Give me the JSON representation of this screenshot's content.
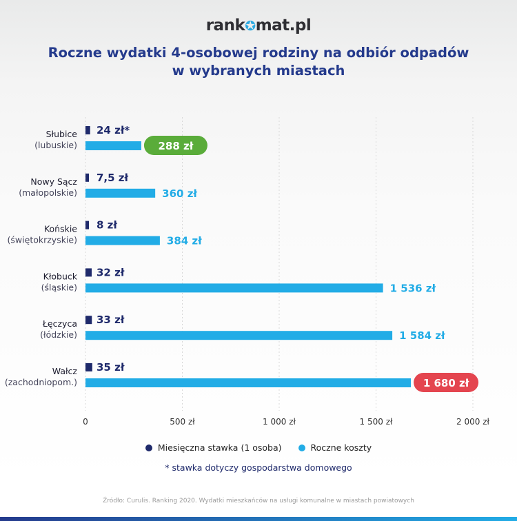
{
  "logo": {
    "before": "rank",
    "after": "mat.pl"
  },
  "title": {
    "line1": "Roczne wydatki 4-osobowej rodziny na odbiór odpadów",
    "line2": "w wybranych miastach"
  },
  "colors": {
    "monthly": "#1f2a6b",
    "annual": "#22ace6",
    "min_highlight": "#5aac3a",
    "max_highlight": "#e4454f",
    "title": "#243a8c"
  },
  "chart_data": {
    "type": "bar",
    "orientation": "horizontal",
    "categories": [
      {
        "name": "Słubice",
        "region": "(lubuskie)"
      },
      {
        "name": "Nowy Sącz",
        "region": "(małopolskie)"
      },
      {
        "name": "Końskie",
        "region": "(świętokrzyskie)"
      },
      {
        "name": "Kłobuck",
        "region": "(śląskie)"
      },
      {
        "name": "Łęczyca",
        "region": "(łódzkie)"
      },
      {
        "name": "Wałcz",
        "region": "(zachodniopom.)"
      }
    ],
    "series": [
      {
        "name": "Miesięczna stawka (1 osoba)",
        "values": [
          24,
          7.5,
          8,
          32,
          33,
          35
        ],
        "labels": [
          "24 zł*",
          "7,5 zł",
          "8 zł",
          "32 zł",
          "33 zł",
          "35 zł"
        ]
      },
      {
        "name": "Roczne koszty",
        "values": [
          288,
          360,
          384,
          1536,
          1584,
          1680
        ],
        "labels": [
          "288 zł",
          "360 zł",
          "384 zł",
          "1 536 zł",
          "1 584 zł",
          "1 680 zł"
        ],
        "highlight": [
          "min",
          null,
          null,
          null,
          null,
          "max"
        ]
      }
    ],
    "xlim": [
      0,
      2000
    ],
    "xticks": [
      0,
      500,
      1000,
      1500,
      2000
    ],
    "xtick_labels": [
      "0",
      "500 zł",
      "1 000 zł",
      "1 500 zł",
      "2 000 zł"
    ],
    "grid": "vertical",
    "legend": "bottom"
  },
  "legend": {
    "monthly": "Miesięczna stawka (1 osoba)",
    "annual": "Roczne koszty"
  },
  "footnote": "* stawka dotyczy gospodarstwa domowego",
  "source": "Źródło: Curulis. Ranking 2020. Wydatki mieszkańców na usługi komunalne w miastach powiatowych"
}
